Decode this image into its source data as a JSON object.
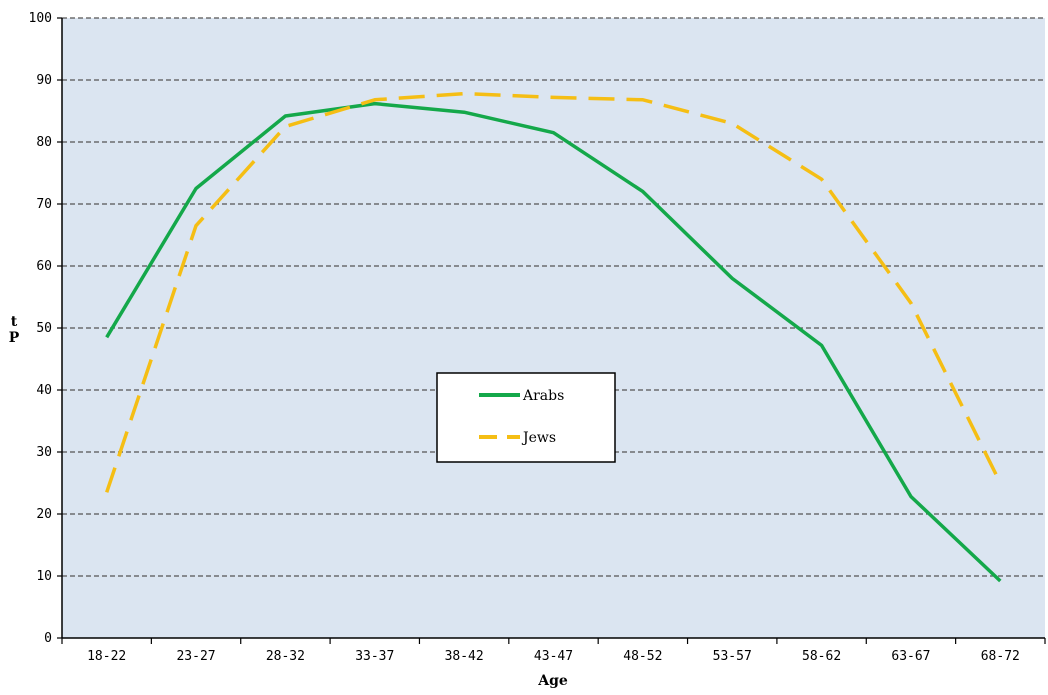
{
  "chart_data": {
    "type": "line",
    "title": "",
    "xlabel": "Age",
    "ylabel": "t P",
    "ylabel_lines": [
      "t",
      "P"
    ],
    "categories": [
      "18-22",
      "23-27",
      "28-32",
      "33-37",
      "38-42",
      "43-47",
      "48-52",
      "53-57",
      "58-62",
      "63-67",
      "68-72"
    ],
    "ylim": [
      0,
      100
    ],
    "yticks": [
      "0",
      "10",
      "20",
      "30",
      "40",
      "50",
      "60",
      "70",
      "80",
      "90",
      "100"
    ],
    "grid": true,
    "legend_placement": "center",
    "background_color": "#dbe5f1",
    "series": [
      {
        "name": "Arabs",
        "values": [
          48.5,
          72.5,
          84.2,
          86.2,
          84.8,
          81.5,
          72.0,
          58.0,
          47.2,
          22.8,
          9.2
        ],
        "color": "#14a84a",
        "style": "solid"
      },
      {
        "name": "Jews",
        "values": [
          23.5,
          66.5,
          82.5,
          86.8,
          87.8,
          87.2,
          86.8,
          83.0,
          74.0,
          54.0,
          25.0
        ],
        "color": "#f5be14",
        "style": "dashed"
      }
    ]
  }
}
